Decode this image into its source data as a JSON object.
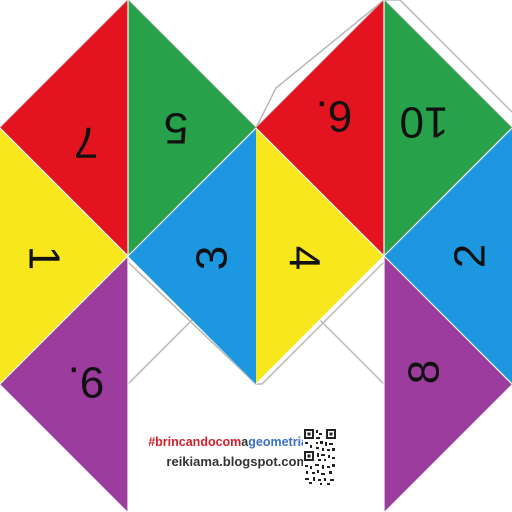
{
  "faces": [
    {
      "id": "red-left",
      "number": "7",
      "color": "#e3141f"
    },
    {
      "id": "green-left",
      "number": "5",
      "color": "#27a24a"
    },
    {
      "id": "yellow-left",
      "number": "1",
      "color": "#f8e71c"
    },
    {
      "id": "blue-left",
      "number": "3",
      "color": "#1c97e0"
    },
    {
      "id": "purple-left",
      "number": "9.",
      "color": "#9b3c9e"
    },
    {
      "id": "red-right",
      "number": "6.",
      "color": "#e3141f"
    },
    {
      "id": "green-right",
      "number": "10",
      "color": "#27a24a"
    },
    {
      "id": "yellow-right",
      "number": "4",
      "color": "#f8e71c"
    },
    {
      "id": "blue-right",
      "number": "2",
      "color": "#1c97e0"
    },
    {
      "id": "purple-right",
      "number": "8",
      "color": "#9b3c9e"
    }
  ],
  "credit": {
    "hashtag_prefix": "#brincando",
    "hashtag_com": "com",
    "hashtag_a": "a",
    "hashtag_word": "geometria",
    "url": "reikiama.blogspot.com"
  },
  "colors": {
    "hashtag_prefix": "#d21f2b",
    "hashtag_com": "#d21f2b",
    "hashtag_a": "#333333",
    "hashtag_word": "#3b6fc4",
    "outline": "#b8b8b8"
  }
}
